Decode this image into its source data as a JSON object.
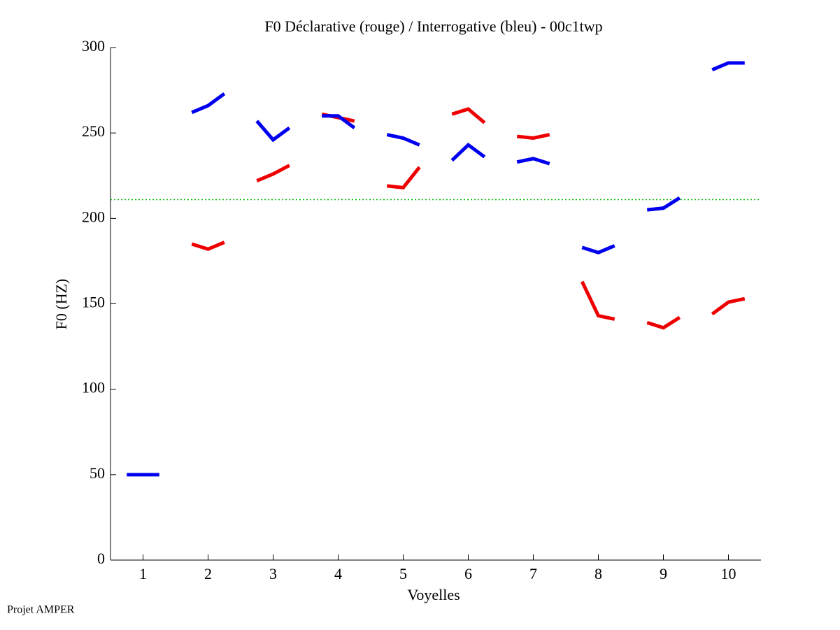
{
  "chart_data": {
    "type": "line",
    "title": "F0 Déclarative (rouge) / Interrogative (bleu) - 00c1twp",
    "x_label": "Voyelles",
    "y_label": "F0 (HZ)",
    "footer": "Projet AMPER",
    "x": [
      0.75,
      1,
      1.25,
      1.5,
      1.75,
      2,
      2.25,
      2.5,
      2.75,
      3,
      3.25,
      3.5,
      3.75,
      4,
      4.25,
      4.5,
      4.75,
      5,
      5.25,
      5.5,
      5.75,
      6,
      6.25,
      6.5,
      6.75,
      7,
      7.25,
      7.5,
      7.75,
      8,
      8.25,
      8.5,
      8.75,
      9,
      9.25,
      9.5,
      9.75,
      10,
      10.25
    ],
    "series": [
      {
        "name": "Déclarative",
        "color": "#ee0000",
        "values": [
          null,
          null,
          null,
          null,
          185,
          182,
          186,
          null,
          222,
          226,
          231,
          null,
          261,
          259,
          257,
          null,
          219,
          218,
          230,
          null,
          261,
          264,
          256,
          null,
          248,
          247,
          249,
          null,
          163,
          143,
          141,
          null,
          139,
          136,
          142,
          null,
          144,
          151,
          153
        ]
      },
      {
        "name": "Interrogative",
        "color": "#0000ee",
        "values": [
          50,
          50,
          50,
          null,
          262,
          266,
          273,
          null,
          257,
          246,
          253,
          null,
          260,
          260,
          253,
          null,
          249,
          247,
          243,
          null,
          234,
          243,
          236,
          null,
          233,
          235,
          232,
          null,
          183,
          180,
          184,
          null,
          205,
          206,
          212,
          null,
          287,
          291,
          291
        ]
      }
    ],
    "reference_line": 211,
    "reference_color": "#00bb00",
    "xlim": [
      0.5,
      10.5
    ],
    "xticks": [
      1,
      2,
      3,
      4,
      5,
      6,
      7,
      8,
      9,
      10
    ],
    "ylim": [
      0,
      300
    ],
    "yticks": [
      0,
      50,
      100,
      150,
      200,
      250,
      300
    ]
  }
}
